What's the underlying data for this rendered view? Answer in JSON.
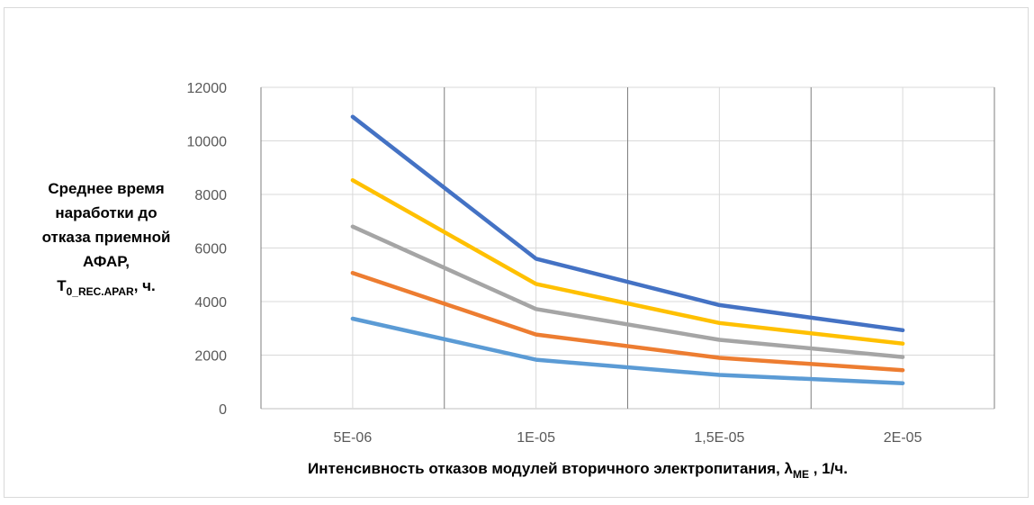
{
  "chart_data": {
    "type": "line",
    "x": [
      "5E-06",
      "1E-05",
      "1,5E-05",
      "2E-05"
    ],
    "series": [
      {
        "color": "#4472c4",
        "values": [
          10900,
          5600,
          3870,
          2930
        ]
      },
      {
        "color": "#ffc000",
        "values": [
          8530,
          4660,
          3200,
          2430
        ]
      },
      {
        "color": "#a5a5a5",
        "values": [
          6800,
          3720,
          2570,
          1930
        ]
      },
      {
        "color": "#ed7d31",
        "values": [
          5070,
          2770,
          1900,
          1440
        ]
      },
      {
        "color": "#5b9bd5",
        "values": [
          3360,
          1830,
          1260,
          950
        ]
      }
    ],
    "yticks": [
      "0",
      "2000",
      "4000",
      "6000",
      "8000",
      "10000",
      "12000"
    ],
    "ylim": [
      0,
      12000
    ],
    "grid": true,
    "ylabel": {
      "lines": [
        "Среднее время",
        "наработки до",
        "отказа приемной",
        "АФАР,"
      ],
      "symbol": "T",
      "symbol_sub": "0_REC.APAR",
      "unit": ", ч."
    },
    "xlabel": {
      "text": "Интенсивность отказов модулей вторичного электропитания, ",
      "symbol": "λ",
      "symbol_sub": "ME",
      "unit": " , 1/ч."
    }
  }
}
